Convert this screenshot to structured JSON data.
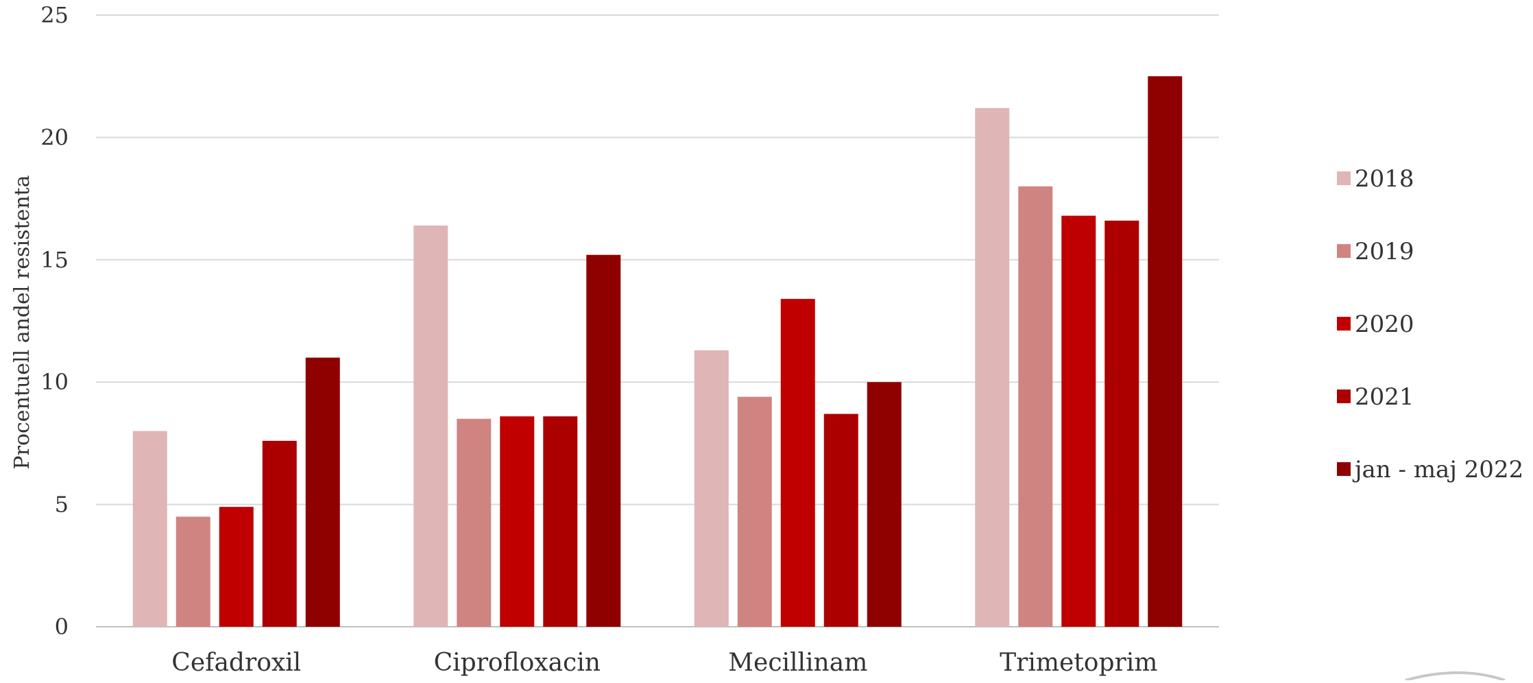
{
  "chart_data": {
    "type": "bar",
    "title": "",
    "xlabel": "",
    "ylabel": "Procentuell andel resistenta",
    "ylim": [
      0,
      25
    ],
    "yticks": [
      0,
      5,
      10,
      15,
      20,
      25
    ],
    "grid": true,
    "legend_position": "right",
    "categories": [
      "Cefadroxil",
      "Ciprofloxacin",
      "Mecillinam",
      "Trimetoprim"
    ],
    "series": [
      {
        "name": "2018",
        "color": "#dfb5b5",
        "values": [
          8.0,
          16.4,
          11.3,
          21.2
        ]
      },
      {
        "name": "2019",
        "color": "#d08482",
        "values": [
          4.5,
          8.5,
          9.4,
          18.0
        ]
      },
      {
        "name": "2020",
        "color": "#c00000",
        "values": [
          4.9,
          8.6,
          13.4,
          16.8
        ]
      },
      {
        "name": "2021",
        "color": "#ac0000",
        "values": [
          7.6,
          8.6,
          8.7,
          16.6
        ]
      },
      {
        "name": "jan - maj 2022",
        "color": "#8f0000",
        "values": [
          11.0,
          15.2,
          10.0,
          22.5
        ]
      }
    ]
  }
}
